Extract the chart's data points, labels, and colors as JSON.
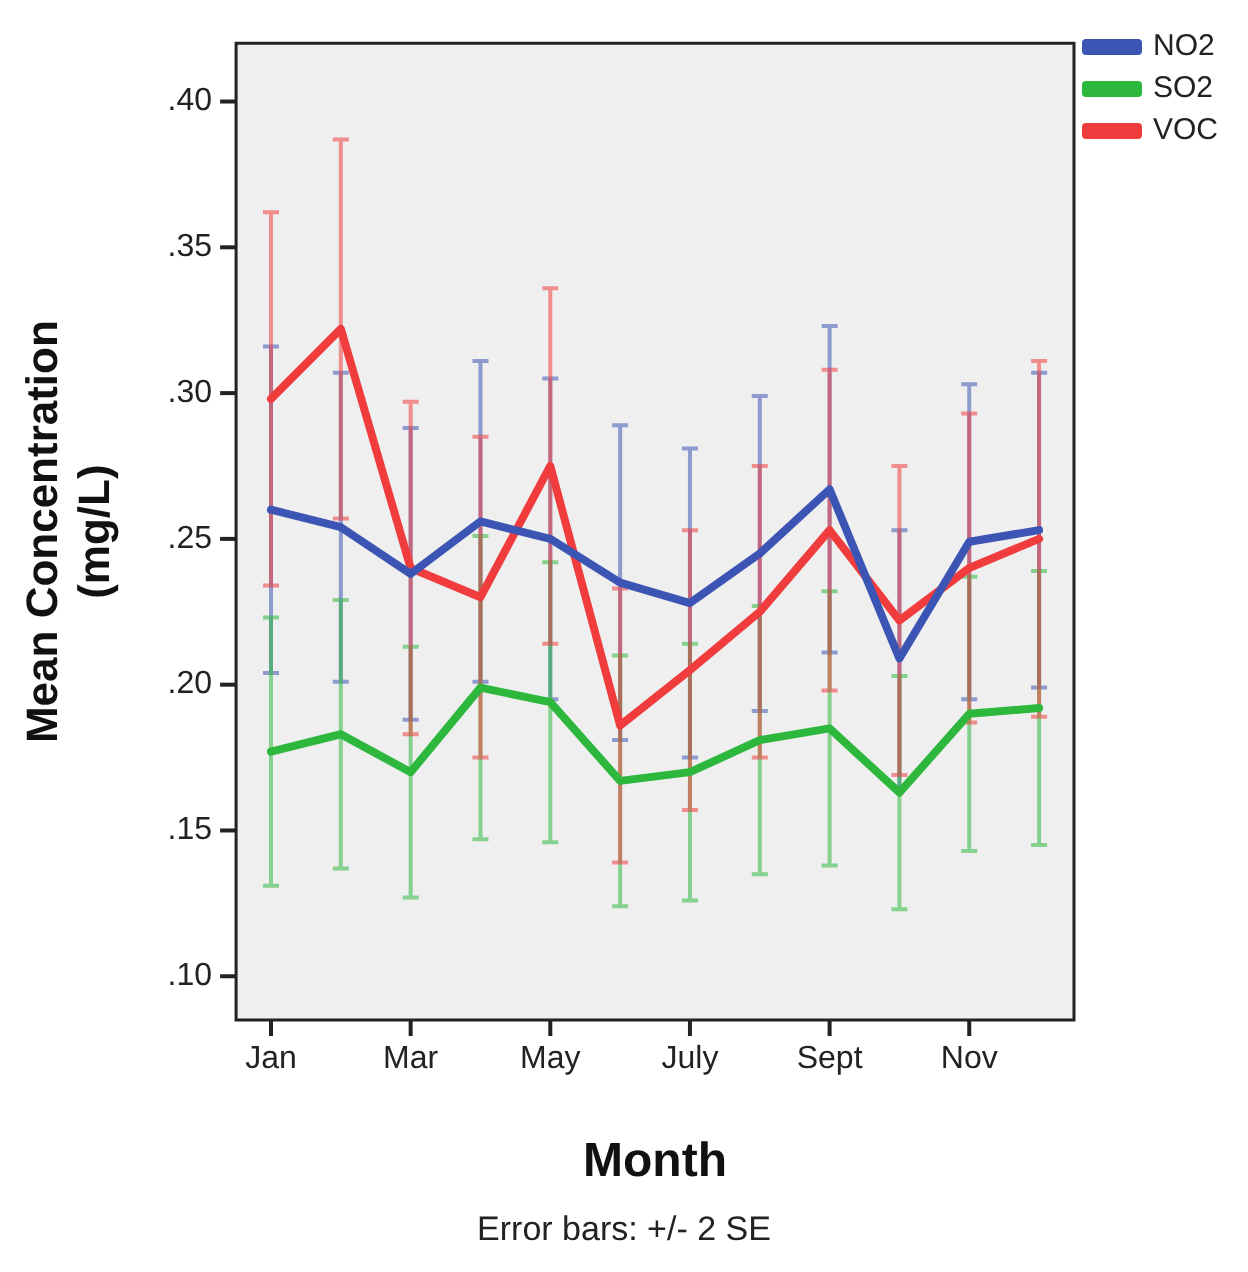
{
  "chart_data": {
    "type": "line",
    "xlabel": "Month",
    "ylabel": "Mean Concentration\n(mg/L)",
    "categories": [
      "Jan",
      null,
      "Mar",
      null,
      "May",
      null,
      "July",
      null,
      "Sept",
      null,
      "Nov",
      null
    ],
    "series": [
      {
        "name": "NO2",
        "color": "#3c55b4",
        "values": [
          0.26,
          0.254,
          0.238,
          0.256,
          0.25,
          0.235,
          0.228,
          0.245,
          0.267,
          0.209,
          0.249,
          0.253
        ],
        "errors": [
          0.056,
          0.053,
          0.05,
          0.055,
          0.055,
          0.054,
          0.053,
          0.054,
          0.056,
          0.044,
          0.054,
          0.054
        ]
      },
      {
        "name": "SO2",
        "color": "#2db83d",
        "values": [
          0.177,
          0.183,
          0.17,
          0.199,
          0.194,
          0.167,
          0.17,
          0.181,
          0.185,
          0.163,
          0.19,
          0.192
        ],
        "errors": [
          0.046,
          0.046,
          0.043,
          0.052,
          0.048,
          0.043,
          0.044,
          0.046,
          0.047,
          0.04,
          0.047,
          0.047
        ]
      },
      {
        "name": "VOC",
        "color": "#f03c3c",
        "values": [
          0.298,
          0.322,
          0.24,
          0.23,
          0.275,
          0.186,
          0.205,
          0.225,
          0.253,
          0.222,
          0.24,
          0.25
        ],
        "errors": [
          0.064,
          0.065,
          0.057,
          0.055,
          0.061,
          0.047,
          0.048,
          0.05,
          0.055,
          0.053,
          0.053,
          0.061
        ]
      }
    ],
    "ylim": [
      0.085,
      0.42
    ],
    "yticks": [
      {
        "value": 0.1,
        "label": ".10"
      },
      {
        "value": 0.15,
        "label": ".15"
      },
      {
        "value": 0.2,
        "label": ".20"
      },
      {
        "value": 0.25,
        "label": ".25"
      },
      {
        "value": 0.3,
        "label": ".30"
      },
      {
        "value": 0.35,
        "label": ".35"
      },
      {
        "value": 0.4,
        "label": ".40"
      }
    ],
    "grid": false,
    "legend": "top right",
    "marker": "none",
    "line_style": "solid",
    "annotations": [
      "Error bars: +/- 2 SE"
    ]
  }
}
